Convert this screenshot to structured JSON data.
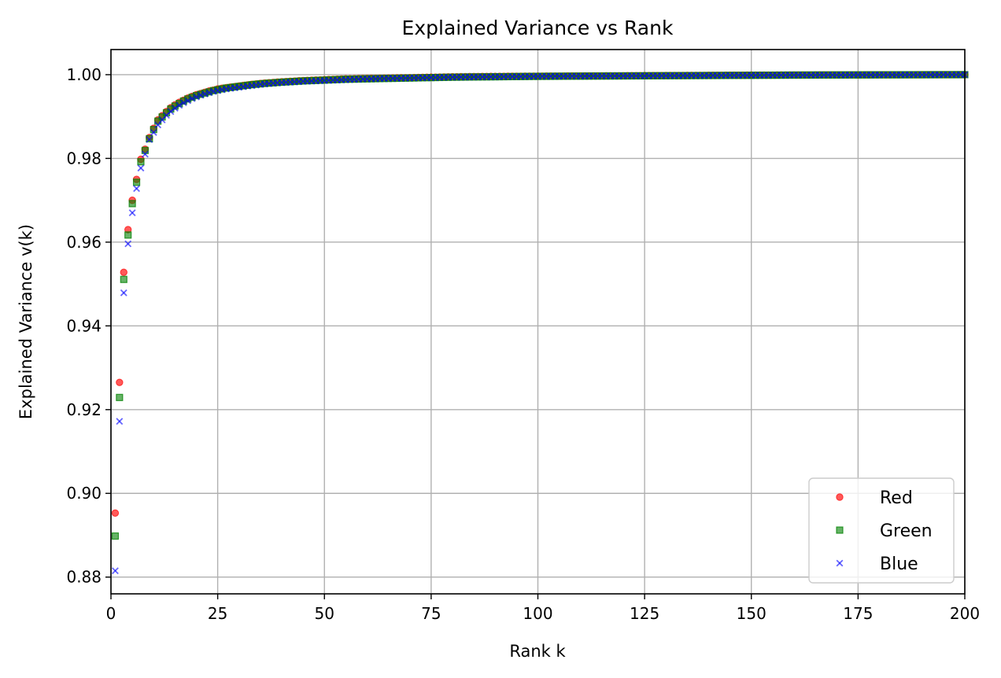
{
  "chart_data": {
    "type": "scatter",
    "title": "Explained Variance vs Rank",
    "xlabel": "Rank k",
    "ylabel": "Explained Variance v(k)",
    "xlim": [
      0,
      200
    ],
    "ylim": [
      0.876,
      1.006
    ],
    "x_ticks": [
      0,
      25,
      50,
      75,
      100,
      125,
      150,
      175,
      200
    ],
    "y_ticks": [
      0.88,
      0.9,
      0.92,
      0.94,
      0.96,
      0.98,
      1.0
    ],
    "y_tick_labels": [
      "0.88",
      "0.90",
      "0.92",
      "0.94",
      "0.96",
      "0.98",
      "1.00"
    ],
    "grid": true,
    "legend_position": "lower-right",
    "series": [
      {
        "name": "Red",
        "color": "#ff0000",
        "marker": "circle",
        "x": [
          1,
          2,
          3,
          4,
          5,
          6,
          7,
          8,
          9,
          10,
          11,
          12,
          13,
          14,
          15,
          16,
          17,
          18,
          19,
          20,
          21,
          22,
          23,
          24,
          25,
          27,
          30,
          33,
          36,
          40,
          45,
          50,
          55,
          60,
          65,
          70,
          75,
          80,
          90,
          100,
          110,
          120,
          130,
          140,
          150,
          160,
          170,
          180,
          190,
          200
        ],
        "y": [
          0.8953,
          0.9265,
          0.9528,
          0.963,
          0.97,
          0.975,
          0.9798,
          0.9822,
          0.985,
          0.9872,
          0.9892,
          0.9902,
          0.9912,
          0.9921,
          0.9928,
          0.9934,
          0.9939,
          0.9944,
          0.9948,
          0.9952,
          0.9955,
          0.9958,
          0.9961,
          0.9963,
          0.9966,
          0.9969,
          0.9973,
          0.9977,
          0.998,
          0.9983,
          0.9986,
          0.9988,
          0.999,
          0.9991,
          0.9992,
          0.9993,
          0.9994,
          0.9995,
          0.9996,
          0.99965,
          0.9997,
          0.99975,
          0.9998,
          0.99985,
          0.9999,
          0.99993,
          0.99995,
          0.99997,
          0.99999,
          1.0
        ]
      },
      {
        "name": "Green",
        "color": "#008000",
        "marker": "square",
        "x": [
          1,
          2,
          3,
          4,
          5,
          6,
          7,
          8,
          9,
          10,
          11,
          12,
          13,
          14,
          15,
          16,
          17,
          18,
          19,
          20,
          21,
          22,
          23,
          24,
          25,
          27,
          30,
          33,
          36,
          40,
          45,
          50,
          55,
          60,
          65,
          70,
          75,
          80,
          90,
          100,
          110,
          120,
          130,
          140,
          150,
          160,
          170,
          180,
          190,
          200
        ],
        "y": [
          0.8898,
          0.9229,
          0.9511,
          0.9617,
          0.9692,
          0.9743,
          0.9792,
          0.9819,
          0.9847,
          0.9869,
          0.9889,
          0.9899,
          0.9909,
          0.9918,
          0.9925,
          0.9931,
          0.9937,
          0.9942,
          0.9946,
          0.995,
          0.9953,
          0.9956,
          0.9959,
          0.9962,
          0.9964,
          0.9968,
          0.9972,
          0.9976,
          0.9979,
          0.9982,
          0.9985,
          0.9987,
          0.9989,
          0.999,
          0.9991,
          0.9992,
          0.9993,
          0.9994,
          0.9995,
          0.9996,
          0.99965,
          0.9997,
          0.99975,
          0.9998,
          0.99985,
          0.9999,
          0.99993,
          0.99996,
          0.99998,
          1.0
        ]
      },
      {
        "name": "Blue",
        "color": "#0000ff",
        "marker": "x",
        "x": [
          1,
          2,
          3,
          4,
          5,
          6,
          7,
          8,
          9,
          10,
          11,
          12,
          13,
          14,
          15,
          16,
          17,
          18,
          19,
          20,
          21,
          22,
          23,
          24,
          25,
          27,
          30,
          33,
          36,
          40,
          45,
          50,
          55,
          60,
          65,
          70,
          75,
          80,
          90,
          100,
          110,
          120,
          130,
          140,
          150,
          160,
          170,
          180,
          190,
          200
        ],
        "y": [
          0.8815,
          0.9172,
          0.9479,
          0.9596,
          0.967,
          0.9728,
          0.9777,
          0.981,
          0.9845,
          0.9862,
          0.988,
          0.9892,
          0.9903,
          0.9912,
          0.992,
          0.9927,
          0.9933,
          0.9938,
          0.9943,
          0.9947,
          0.9951,
          0.9954,
          0.9957,
          0.996,
          0.9962,
          0.9966,
          0.997,
          0.9974,
          0.9978,
          0.9981,
          0.9984,
          0.9986,
          0.9988,
          0.999,
          0.9991,
          0.9992,
          0.9993,
          0.9994,
          0.9995,
          0.9996,
          0.99965,
          0.9997,
          0.99975,
          0.9998,
          0.99985,
          0.9999,
          0.99993,
          0.99996,
          0.99998,
          1.0
        ]
      }
    ]
  }
}
